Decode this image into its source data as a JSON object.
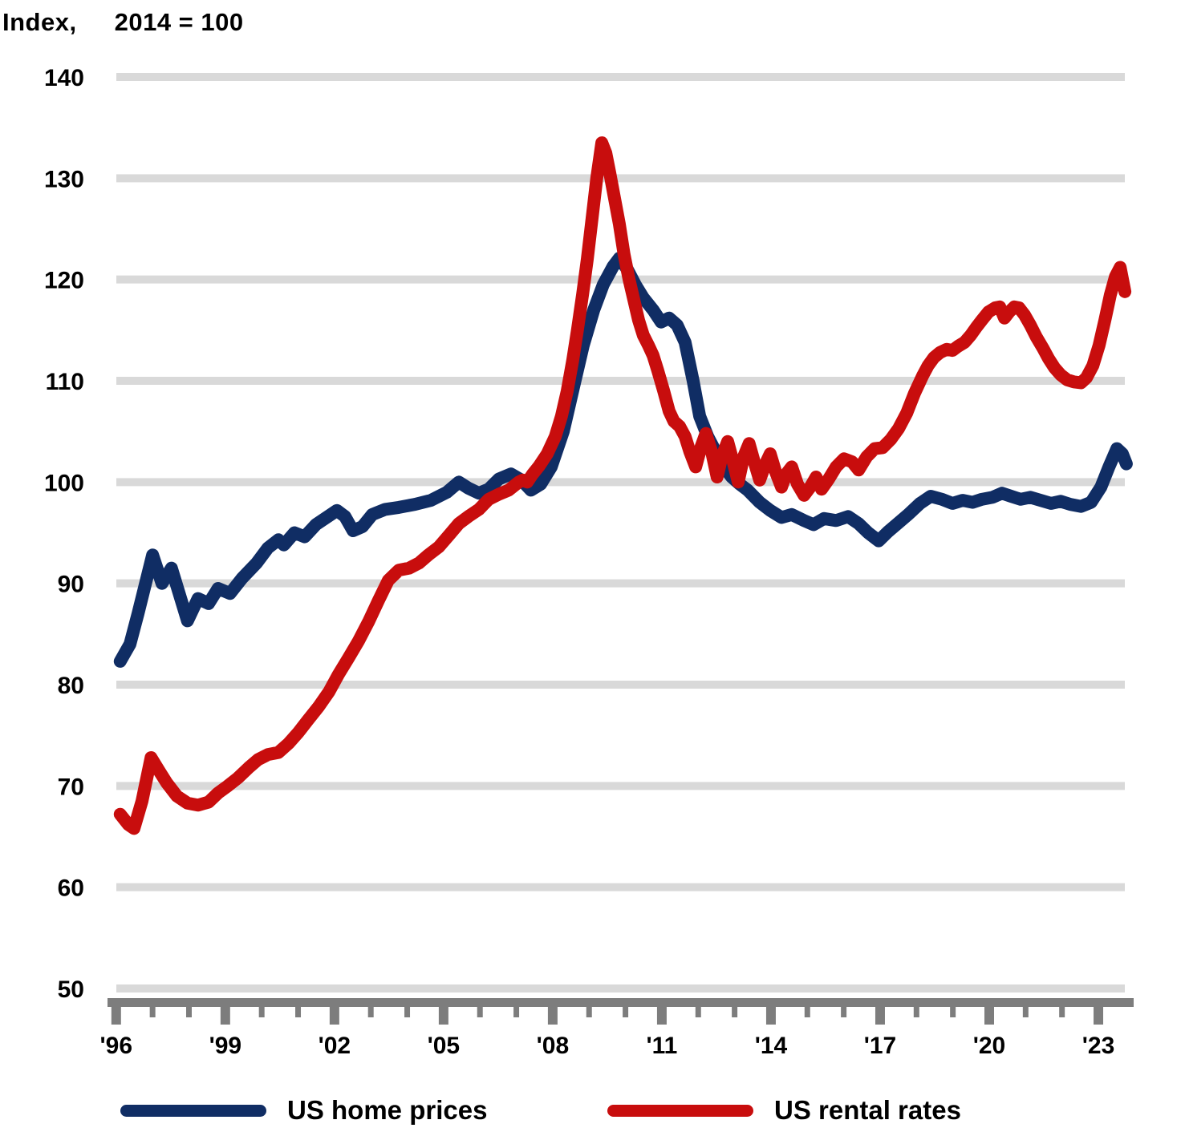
{
  "header": {
    "unit_label_1": "Index,",
    "unit_label_2": "2014 = 100"
  },
  "colors": {
    "series_blue": "#102d64",
    "series_red": "#c80d0d",
    "gridline": "#d9d9d9",
    "axis": "#7d7d7d",
    "text": "#000000",
    "background": "#ffffff"
  },
  "legend": {
    "items": [
      {
        "label": "US home prices",
        "color": "#102d64"
      },
      {
        "label": "US rental rates",
        "color": "#c80d0d"
      }
    ]
  },
  "chart_data": {
    "type": "line",
    "title": "",
    "xlabel": "",
    "ylabel": "Index, 2014 = 100",
    "x_domain": [
      1995.96,
      2023.97
    ],
    "ylim": [
      50,
      140
    ],
    "grid": "horizontal",
    "legend_position": "bottom",
    "y_ticks": [
      140,
      130,
      120,
      110,
      100,
      90,
      80,
      70,
      60,
      50
    ],
    "x_ticks": [
      {
        "value": 1996,
        "label": "'96"
      },
      {
        "value": 1999,
        "label": "'99"
      },
      {
        "value": 2002,
        "label": "'02"
      },
      {
        "value": 2005,
        "label": "'05"
      },
      {
        "value": 2008,
        "label": "'08"
      },
      {
        "value": 2011,
        "label": "'11"
      },
      {
        "value": 2014,
        "label": "'14"
      },
      {
        "value": 2017,
        "label": "'17"
      },
      {
        "value": 2020,
        "label": "'20"
      },
      {
        "value": 2023,
        "label": "'23"
      }
    ],
    "minor_tick_interval": 1,
    "series": [
      {
        "name": "US home prices",
        "color": "#102d64",
        "points": [
          [
            1996.11,
            82.3
          ],
          [
            1996.38,
            84
          ],
          [
            1996.6,
            87
          ],
          [
            1997.0,
            92.8
          ],
          [
            1997.26,
            90
          ],
          [
            1997.52,
            91.5
          ],
          [
            1997.96,
            86.3
          ],
          [
            1998.25,
            88.5
          ],
          [
            1998.54,
            88
          ],
          [
            1998.8,
            89.5
          ],
          [
            1999.13,
            89
          ],
          [
            1999.46,
            90.5
          ],
          [
            1999.86,
            92
          ],
          [
            2000.17,
            93.5
          ],
          [
            2000.46,
            94.3
          ],
          [
            2000.61,
            93.8
          ],
          [
            2000.9,
            95
          ],
          [
            2001.18,
            94.6
          ],
          [
            2001.49,
            95.8
          ],
          [
            2001.78,
            96.5
          ],
          [
            2002.07,
            97.2
          ],
          [
            2002.29,
            96.6
          ],
          [
            2002.51,
            95.2
          ],
          [
            2002.77,
            95.6
          ],
          [
            2003.04,
            96.8
          ],
          [
            2003.39,
            97.3
          ],
          [
            2003.77,
            97.5
          ],
          [
            2004.21,
            97.8
          ],
          [
            2004.65,
            98.2
          ],
          [
            2005.09,
            99
          ],
          [
            2005.42,
            100
          ],
          [
            2005.68,
            99.4
          ],
          [
            2005.97,
            98.9
          ],
          [
            2006.24,
            99.3
          ],
          [
            2006.52,
            100.3
          ],
          [
            2006.85,
            100.8
          ],
          [
            2007.14,
            100.2
          ],
          [
            2007.4,
            99.2
          ],
          [
            2007.67,
            99.8
          ],
          [
            2007.96,
            101.5
          ],
          [
            2008.29,
            105
          ],
          [
            2008.55,
            109
          ],
          [
            2008.84,
            113.5
          ],
          [
            2009.13,
            117
          ],
          [
            2009.39,
            119.5
          ],
          [
            2009.66,
            121.3
          ],
          [
            2009.83,
            122.1
          ],
          [
            2010.05,
            121
          ],
          [
            2010.27,
            119.5
          ],
          [
            2010.49,
            118.2
          ],
          [
            2010.76,
            117
          ],
          [
            2010.98,
            115.8
          ],
          [
            2011.2,
            116.2
          ],
          [
            2011.42,
            115.5
          ],
          [
            2011.64,
            113.8
          ],
          [
            2011.86,
            110
          ],
          [
            2012.04,
            106.5
          ],
          [
            2012.26,
            104.5
          ],
          [
            2012.48,
            103
          ],
          [
            2012.7,
            101.5
          ],
          [
            2012.92,
            100.5
          ],
          [
            2013.14,
            99.8
          ],
          [
            2013.36,
            99.2
          ],
          [
            2013.69,
            98
          ],
          [
            2013.98,
            97.2
          ],
          [
            2014.29,
            96.5
          ],
          [
            2014.57,
            96.8
          ],
          [
            2014.91,
            96.2
          ],
          [
            2015.17,
            95.8
          ],
          [
            2015.46,
            96.4
          ],
          [
            2015.79,
            96.2
          ],
          [
            2016.12,
            96.6
          ],
          [
            2016.41,
            95.9
          ],
          [
            2016.67,
            95
          ],
          [
            2016.96,
            94.2
          ],
          [
            2017.22,
            95.1
          ],
          [
            2017.51,
            96
          ],
          [
            2017.77,
            96.8
          ],
          [
            2018.1,
            97.9
          ],
          [
            2018.39,
            98.6
          ],
          [
            2018.7,
            98.3
          ],
          [
            2018.99,
            97.9
          ],
          [
            2019.27,
            98.2
          ],
          [
            2019.54,
            98
          ],
          [
            2019.8,
            98.3
          ],
          [
            2020.09,
            98.5
          ],
          [
            2020.35,
            98.9
          ],
          [
            2020.6,
            98.6
          ],
          [
            2020.86,
            98.3
          ],
          [
            2021.13,
            98.5
          ],
          [
            2021.41,
            98.2
          ],
          [
            2021.7,
            97.9
          ],
          [
            2021.96,
            98.1
          ],
          [
            2022.23,
            97.8
          ],
          [
            2022.52,
            97.6
          ],
          [
            2022.8,
            98
          ],
          [
            2023.07,
            99.5
          ],
          [
            2023.29,
            101.5
          ],
          [
            2023.51,
            103.3
          ],
          [
            2023.66,
            102.8
          ],
          [
            2023.77,
            101.8
          ]
        ]
      },
      {
        "name": "US rental rates",
        "color": "#c80d0d",
        "points": [
          [
            1996.11,
            67.2
          ],
          [
            1996.33,
            66.2
          ],
          [
            1996.49,
            65.8
          ],
          [
            1996.71,
            68.5
          ],
          [
            1996.96,
            72.8
          ],
          [
            1997.18,
            71.5
          ],
          [
            1997.39,
            70.3
          ],
          [
            1997.67,
            69
          ],
          [
            1997.96,
            68.3
          ],
          [
            1998.25,
            68.1
          ],
          [
            1998.54,
            68.4
          ],
          [
            1998.8,
            69.3
          ],
          [
            1999.07,
            70
          ],
          [
            1999.35,
            70.8
          ],
          [
            1999.64,
            71.8
          ],
          [
            1999.9,
            72.6
          ],
          [
            2000.17,
            73.1
          ],
          [
            2000.46,
            73.3
          ],
          [
            2000.74,
            74.2
          ],
          [
            2001.01,
            75.3
          ],
          [
            2001.27,
            76.5
          ],
          [
            2001.56,
            77.8
          ],
          [
            2001.85,
            79.3
          ],
          [
            2002.11,
            81
          ],
          [
            2002.38,
            82.6
          ],
          [
            2002.66,
            84.3
          ],
          [
            2002.95,
            86.3
          ],
          [
            2003.21,
            88.3
          ],
          [
            2003.48,
            90.3
          ],
          [
            2003.77,
            91.3
          ],
          [
            2004.05,
            91.5
          ],
          [
            2004.32,
            92
          ],
          [
            2004.58,
            92.8
          ],
          [
            2004.87,
            93.6
          ],
          [
            2005.16,
            94.8
          ],
          [
            2005.42,
            95.9
          ],
          [
            2005.68,
            96.6
          ],
          [
            2005.97,
            97.3
          ],
          [
            2006.24,
            98.3
          ],
          [
            2006.52,
            98.8
          ],
          [
            2006.79,
            99.2
          ],
          [
            2007.07,
            100
          ],
          [
            2007.18,
            100.2
          ],
          [
            2007.3,
            100
          ],
          [
            2007.45,
            100.8
          ],
          [
            2007.63,
            101.6
          ],
          [
            2007.85,
            102.8
          ],
          [
            2008.07,
            104.5
          ],
          [
            2008.24,
            106.5
          ],
          [
            2008.4,
            109
          ],
          [
            2008.55,
            112
          ],
          [
            2008.68,
            115
          ],
          [
            2008.82,
            118.5
          ],
          [
            2008.95,
            122
          ],
          [
            2009.08,
            126
          ],
          [
            2009.21,
            130
          ],
          [
            2009.35,
            133.5
          ],
          [
            2009.46,
            132.5
          ],
          [
            2009.57,
            130.5
          ],
          [
            2009.7,
            128
          ],
          [
            2009.83,
            125.5
          ],
          [
            2009.96,
            122.5
          ],
          [
            2010.1,
            120
          ],
          [
            2010.23,
            118
          ],
          [
            2010.36,
            116
          ],
          [
            2010.49,
            114.5
          ],
          [
            2010.63,
            113.5
          ],
          [
            2010.76,
            112.5
          ],
          [
            2010.89,
            111
          ],
          [
            2011.05,
            109
          ],
          [
            2011.2,
            107
          ],
          [
            2011.33,
            106
          ],
          [
            2011.49,
            105.5
          ],
          [
            2011.64,
            104.5
          ],
          [
            2011.77,
            103
          ],
          [
            2011.93,
            101.5
          ],
          [
            2012.08,
            103.5
          ],
          [
            2012.21,
            104.8
          ],
          [
            2012.37,
            103
          ],
          [
            2012.52,
            100.5
          ],
          [
            2012.65,
            102.5
          ],
          [
            2012.81,
            104
          ],
          [
            2012.96,
            102
          ],
          [
            2013.1,
            100
          ],
          [
            2013.25,
            102.5
          ],
          [
            2013.4,
            103.8
          ],
          [
            2013.54,
            102
          ],
          [
            2013.69,
            100.2
          ],
          [
            2013.85,
            101.8
          ],
          [
            2013.98,
            102.8
          ],
          [
            2014.13,
            101
          ],
          [
            2014.29,
            99.5
          ],
          [
            2014.42,
            100.8
          ],
          [
            2014.57,
            101.5
          ],
          [
            2014.73,
            99.8
          ],
          [
            2014.91,
            98.7
          ],
          [
            2015.08,
            99.5
          ],
          [
            2015.24,
            100.5
          ],
          [
            2015.39,
            99.3
          ],
          [
            2015.57,
            100.2
          ],
          [
            2015.79,
            101.5
          ],
          [
            2016.01,
            102.3
          ],
          [
            2016.23,
            102
          ],
          [
            2016.41,
            101.2
          ],
          [
            2016.63,
            102.5
          ],
          [
            2016.85,
            103.3
          ],
          [
            2017.07,
            103.4
          ],
          [
            2017.29,
            104.2
          ],
          [
            2017.51,
            105.3
          ],
          [
            2017.73,
            106.8
          ],
          [
            2017.95,
            108.8
          ],
          [
            2018.17,
            110.5
          ],
          [
            2018.32,
            111.5
          ],
          [
            2018.48,
            112.3
          ],
          [
            2018.65,
            112.8
          ],
          [
            2018.83,
            113.1
          ],
          [
            2018.99,
            113
          ],
          [
            2019.14,
            113.4
          ],
          [
            2019.32,
            113.8
          ],
          [
            2019.49,
            114.5
          ],
          [
            2019.65,
            115.3
          ],
          [
            2019.8,
            116
          ],
          [
            2019.98,
            116.8
          ],
          [
            2020.16,
            117.2
          ],
          [
            2020.29,
            117.3
          ],
          [
            2020.42,
            116.2
          ],
          [
            2020.55,
            116.8
          ],
          [
            2020.69,
            117.3
          ],
          [
            2020.82,
            117.2
          ],
          [
            2020.97,
            116.5
          ],
          [
            2021.13,
            115.5
          ],
          [
            2021.3,
            114.3
          ],
          [
            2021.48,
            113.2
          ],
          [
            2021.63,
            112.2
          ],
          [
            2021.79,
            111.3
          ],
          [
            2021.96,
            110.6
          ],
          [
            2022.14,
            110.1
          ],
          [
            2022.32,
            109.9
          ],
          [
            2022.52,
            109.8
          ],
          [
            2022.67,
            110.3
          ],
          [
            2022.85,
            111.5
          ],
          [
            2023.02,
            113.5
          ],
          [
            2023.18,
            116
          ],
          [
            2023.33,
            118.5
          ],
          [
            2023.47,
            120.3
          ],
          [
            2023.6,
            121.2
          ],
          [
            2023.73,
            118.8
          ]
        ]
      }
    ]
  }
}
